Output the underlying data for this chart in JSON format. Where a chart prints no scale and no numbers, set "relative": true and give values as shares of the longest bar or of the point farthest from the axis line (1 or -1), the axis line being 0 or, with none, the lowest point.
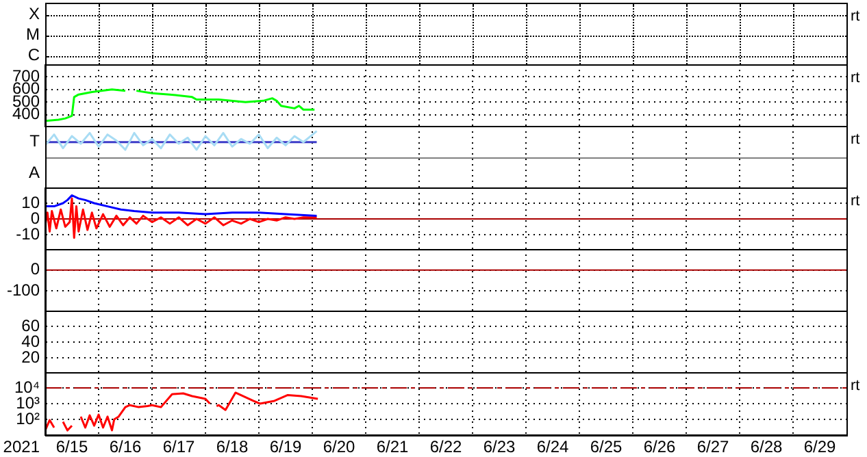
{
  "chart_data": [
    {
      "type": "other",
      "annotations": [
        "X",
        "M",
        "C",
        "rt"
      ]
    },
    {
      "type": "line",
      "xlim": [
        "2021-06-15",
        "2021-06-30"
      ],
      "ylim": [
        300,
        800
      ],
      "yticks": [
        400,
        500,
        600,
        700
      ],
      "xticks": [
        {
          "value": "2021-06-16",
          "label": null
        },
        {
          "value": "2021-06-17",
          "label": null
        },
        {
          "value": "2021-06-18",
          "label": null
        },
        {
          "value": "2021-06-19",
          "label": null
        },
        {
          "value": "2021-06-20",
          "label": null
        },
        {
          "value": "2021-06-21",
          "label": null
        },
        {
          "value": "2021-06-22",
          "label": null
        },
        {
          "value": "2021-06-23",
          "label": null
        },
        {
          "value": "2021-06-24",
          "label": null
        },
        {
          "value": "2021-06-25",
          "label": null
        },
        {
          "value": "2021-06-26",
          "label": null
        },
        {
          "value": "2021-06-27",
          "label": null
        },
        {
          "value": "2021-06-28",
          "label": null
        },
        {
          "value": "2021-06-29",
          "label": null
        }
      ],
      "series": [
        {
          "color": "#00ff00",
          "x": [
            "2021-06-15T00:00",
            "2021-06-15T06:00",
            "2021-06-15T09:00",
            "2021-06-15T12:00",
            "2021-06-15T13:00",
            "2021-06-15T15:00",
            "2021-06-15T21:00",
            "2021-06-16T06:00",
            "2021-06-16T12:00",
            "2021-06-16T14:00",
            "2021-06-16T17:00",
            "2021-06-17T00:00",
            "2021-06-17T08:00",
            "2021-06-17T18:00",
            "2021-06-17T20:00",
            "2021-06-18T06:00",
            "2021-06-18T18:00",
            "2021-06-19T02:00",
            "2021-06-19T06:00",
            "2021-06-19T08:00",
            "2021-06-19T10:00",
            "2021-06-19T16:00",
            "2021-06-19T18:00",
            "2021-06-19T20:00",
            "2021-06-20T01:00"
          ],
          "values": [
            350,
            360,
            370,
            390,
            540,
            560,
            580,
            600,
            590,
            null,
            590,
            570,
            560,
            540,
            520,
            520,
            500,
            510,
            530,
            510,
            470,
            450,
            470,
            440,
            440
          ]
        }
      ],
      "tick_labels": "y",
      "grid": true,
      "annotations": [
        "rt"
      ]
    },
    {
      "type": "line",
      "xlim": [
        "2021-06-15",
        "2021-06-30"
      ],
      "relative": true,
      "xticks": [
        {
          "value": "2021-06-16",
          "label": null
        },
        {
          "value": "2021-06-17",
          "label": null
        },
        {
          "value": "2021-06-18",
          "label": null
        },
        {
          "value": "2021-06-19",
          "label": null
        },
        {
          "value": "2021-06-20",
          "label": null
        },
        {
          "value": "2021-06-21",
          "label": null
        },
        {
          "value": "2021-06-22",
          "label": null
        },
        {
          "value": "2021-06-23",
          "label": null
        },
        {
          "value": "2021-06-24",
          "label": null
        },
        {
          "value": "2021-06-25",
          "label": null
        },
        {
          "value": "2021-06-26",
          "label": null
        },
        {
          "value": "2021-06-27",
          "label": null
        },
        {
          "value": "2021-06-28",
          "label": null
        },
        {
          "value": "2021-06-29",
          "label": null
        }
      ],
      "series": [
        {
          "color": "#a8dcf4",
          "x": [
            "2021-06-15T00:00",
            "2021-06-15T04:00",
            "2021-06-15T08:00",
            "2021-06-15T12:00",
            "2021-06-15T16:00",
            "2021-06-15T20:00",
            "2021-06-16T00:00",
            "2021-06-16T04:00",
            "2021-06-16T08:00",
            "2021-06-16T12:00",
            "2021-06-16T16:00",
            "2021-06-16T20:00",
            "2021-06-17T00:00",
            "2021-06-17T04:00",
            "2021-06-17T08:00",
            "2021-06-17T12:00",
            "2021-06-17T16:00",
            "2021-06-17T20:00",
            "2021-06-18T00:00",
            "2021-06-18T04:00",
            "2021-06-18T08:00",
            "2021-06-18T12:00",
            "2021-06-18T16:00",
            "2021-06-18T20:00",
            "2021-06-19T00:00",
            "2021-06-19T04:00",
            "2021-06-19T08:00",
            "2021-06-19T12:00",
            "2021-06-19T16:00",
            "2021-06-19T20:00",
            "2021-06-20T02:00"
          ],
          "values": [
            0.46,
            0.87,
            0.35,
            0.81,
            0.52,
            0.93,
            0.41,
            0.87,
            0.64,
            0.29,
            0.93,
            0.46,
            0.7,
            0.35,
            0.87,
            0.52,
            0.75,
            0.29,
            0.81,
            0.46,
            0.93,
            0.41,
            0.7,
            0.52,
            0.87,
            0.35,
            0.75,
            0.46,
            0.81,
            0.58,
            1
          ]
        },
        {
          "color": "#3c3cc8",
          "x": [
            "2021-06-15T00:00",
            "2021-06-20T02:00"
          ],
          "values": [
            0.58,
            0.58
          ]
        }
      ],
      "tick_labels": false,
      "grid": "x",
      "annotations": [
        "T",
        "A",
        "rt"
      ]
    },
    {
      "type": "line",
      "xlim": [
        "2021-06-15",
        "2021-06-30"
      ],
      "ylim": [
        -20,
        20
      ],
      "yticks": [
        10,
        0,
        -10
      ],
      "xticks": [
        {
          "value": "2021-06-16",
          "label": null
        },
        {
          "value": "2021-06-17",
          "label": null
        },
        {
          "value": "2021-06-18",
          "label": null
        },
        {
          "value": "2021-06-19",
          "label": null
        },
        {
          "value": "2021-06-20",
          "label": null
        },
        {
          "value": "2021-06-21",
          "label": null
        },
        {
          "value": "2021-06-22",
          "label": null
        },
        {
          "value": "2021-06-23",
          "label": null
        },
        {
          "value": "2021-06-24",
          "label": null
        },
        {
          "value": "2021-06-25",
          "label": null
        },
        {
          "value": "2021-06-26",
          "label": null
        },
        {
          "value": "2021-06-27",
          "label": null
        },
        {
          "value": "2021-06-28",
          "label": null
        },
        {
          "value": "2021-06-29",
          "label": null
        }
      ],
      "series": [
        {
          "color": "#0000ff",
          "x": [
            "2021-06-15T00:00",
            "2021-06-15T04:00",
            "2021-06-15T08:00",
            "2021-06-15T10:00",
            "2021-06-15T12:00",
            "2021-06-15T15:00",
            "2021-06-15T18:00",
            "2021-06-15T22:00",
            "2021-06-16T04:00",
            "2021-06-16T10:00",
            "2021-06-16T16:00",
            "2021-06-17T00:00",
            "2021-06-17T12:00",
            "2021-06-18T00:00",
            "2021-06-18T12:00",
            "2021-06-19T00:00",
            "2021-06-19T12:00",
            "2021-06-20T02:00"
          ],
          "values": [
            8,
            8,
            10,
            12,
            15,
            13,
            12,
            10,
            8,
            6,
            5,
            4,
            4,
            3,
            4,
            4,
            3,
            2
          ]
        },
        {
          "color": "#ff0000",
          "x": [
            "2021-06-15T00:00",
            "2021-06-15T01:00",
            "2021-06-15T02:00",
            "2021-06-15T03:00",
            "2021-06-15T05:00",
            "2021-06-15T07:00",
            "2021-06-15T09:00",
            "2021-06-15T11:00",
            "2021-06-15T12:00",
            "2021-06-15T13:00",
            "2021-06-15T14:00",
            "2021-06-15T15:00",
            "2021-06-15T17:00",
            "2021-06-15T19:00",
            "2021-06-15T21:00",
            "2021-06-15T23:00",
            "2021-06-16T02:00",
            "2021-06-16T05:00",
            "2021-06-16T08:00",
            "2021-06-16T11:00",
            "2021-06-16T14:00",
            "2021-06-16T17:00",
            "2021-06-16T20:00",
            "2021-06-17T00:00",
            "2021-06-17T04:00",
            "2021-06-17T08:00",
            "2021-06-17T12:00",
            "2021-06-17T16:00",
            "2021-06-17T20:00",
            "2021-06-18T00:00",
            "2021-06-18T04:00",
            "2021-06-18T08:00",
            "2021-06-18T12:00",
            "2021-06-18T16:00",
            "2021-06-18T20:00",
            "2021-06-19T00:00",
            "2021-06-19T04:00",
            "2021-06-19T08:00",
            "2021-06-19T12:00",
            "2021-06-19T16:00",
            "2021-06-19T20:00",
            "2021-06-20T02:00"
          ],
          "values": [
            -4,
            4,
            -8,
            5,
            -6,
            6,
            -5,
            -2,
            13,
            -12,
            8,
            -8,
            6,
            -7,
            4,
            -6,
            3,
            -5,
            2,
            -4,
            1,
            -3,
            2,
            -2,
            1,
            -3,
            1,
            -4,
            0,
            -3,
            1,
            -4,
            -1,
            -3,
            0,
            -2,
            0,
            -1,
            1,
            0,
            1,
            1
          ]
        }
      ],
      "ref_lines": [
        {
          "axis": "y",
          "value": 0,
          "color": "#aa0000"
        }
      ],
      "tick_labels": "y",
      "grid": true,
      "annotations": [
        "rt"
      ]
    },
    {
      "type": "line",
      "xlim": [
        "2021-06-15",
        "2021-06-30"
      ],
      "ylim": [
        -200,
        100
      ],
      "yticks": [
        0,
        -100
      ],
      "xticks": [
        {
          "value": "2021-06-16",
          "label": null
        },
        {
          "value": "2021-06-17",
          "label": null
        },
        {
          "value": "2021-06-18",
          "label": null
        },
        {
          "value": "2021-06-19",
          "label": null
        },
        {
          "value": "2021-06-20",
          "label": null
        },
        {
          "value": "2021-06-21",
          "label": null
        },
        {
          "value": "2021-06-22",
          "label": null
        },
        {
          "value": "2021-06-23",
          "label": null
        },
        {
          "value": "2021-06-24",
          "label": null
        },
        {
          "value": "2021-06-25",
          "label": null
        },
        {
          "value": "2021-06-26",
          "label": null
        },
        {
          "value": "2021-06-27",
          "label": null
        },
        {
          "value": "2021-06-28",
          "label": null
        },
        {
          "value": "2021-06-29",
          "label": null
        }
      ],
      "ref_lines": [
        {
          "axis": "y",
          "value": 0,
          "color": "#aa0000"
        }
      ],
      "tick_labels": "y",
      "grid": true
    },
    {
      "type": "line",
      "xlim": [
        "2021-06-15",
        "2021-06-30"
      ],
      "ylim": [
        0,
        80
      ],
      "yticks": [
        60,
        40,
        20
      ],
      "xticks": [
        {
          "value": "2021-06-16",
          "label": null
        },
        {
          "value": "2021-06-17",
          "label": null
        },
        {
          "value": "2021-06-18",
          "label": null
        },
        {
          "value": "2021-06-19",
          "label": null
        },
        {
          "value": "2021-06-20",
          "label": null
        },
        {
          "value": "2021-06-21",
          "label": null
        },
        {
          "value": "2021-06-22",
          "label": null
        },
        {
          "value": "2021-06-23",
          "label": null
        },
        {
          "value": "2021-06-24",
          "label": null
        },
        {
          "value": "2021-06-25",
          "label": null
        },
        {
          "value": "2021-06-26",
          "label": null
        },
        {
          "value": "2021-06-27",
          "label": null
        },
        {
          "value": "2021-06-28",
          "label": null
        },
        {
          "value": "2021-06-29",
          "label": null
        }
      ],
      "tick_labels": "y",
      "grid": true
    },
    {
      "type": "line",
      "xlabel": "2021",
      "xlim": [
        "2021-06-15",
        "2021-06-30"
      ],
      "log": "y",
      "ylim": [
        10,
        100000
      ],
      "yticks": [
        {
          "value": 10000,
          "label": "10⁴"
        },
        {
          "value": 1000,
          "label": "10³"
        },
        {
          "value": 100,
          "label": "10²"
        }
      ],
      "xticks": [
        {
          "value": "2021-06-15T12:00",
          "label": "6/15"
        },
        {
          "value": "2021-06-16",
          "label": null
        },
        {
          "value": "2021-06-16T12:00",
          "label": "6/16"
        },
        {
          "value": "2021-06-17",
          "label": null
        },
        {
          "value": "2021-06-17T12:00",
          "label": "6/17"
        },
        {
          "value": "2021-06-18",
          "label": null
        },
        {
          "value": "2021-06-18T12:00",
          "label": "6/18"
        },
        {
          "value": "2021-06-19",
          "label": null
        },
        {
          "value": "2021-06-19T12:00",
          "label": "6/19"
        },
        {
          "value": "2021-06-20",
          "label": null
        },
        {
          "value": "2021-06-20T12:00",
          "label": "6/20"
        },
        {
          "value": "2021-06-21",
          "label": null
        },
        {
          "value": "2021-06-21T12:00",
          "label": "6/21"
        },
        {
          "value": "2021-06-22",
          "label": null
        },
        {
          "value": "2021-06-22T12:00",
          "label": "6/22"
        },
        {
          "value": "2021-06-23",
          "label": null
        },
        {
          "value": "2021-06-23T12:00",
          "label": "6/23"
        },
        {
          "value": "2021-06-24",
          "label": null
        },
        {
          "value": "2021-06-24T12:00",
          "label": "6/24"
        },
        {
          "value": "2021-06-25",
          "label": null
        },
        {
          "value": "2021-06-25T12:00",
          "label": "6/25"
        },
        {
          "value": "2021-06-26",
          "label": null
        },
        {
          "value": "2021-06-26T12:00",
          "label": "6/26"
        },
        {
          "value": "2021-06-27",
          "label": null
        },
        {
          "value": "2021-06-27T12:00",
          "label": "6/27"
        },
        {
          "value": "2021-06-28",
          "label": null
        },
        {
          "value": "2021-06-28T12:00",
          "label": "6/28"
        },
        {
          "value": "2021-06-29",
          "label": null
        },
        {
          "value": "2021-06-29T12:00",
          "label": "6/29"
        }
      ],
      "series": [
        {
          "color": "#ff0000",
          "x": [
            "2021-06-15T00:00",
            "2021-06-15T02:00",
            "2021-06-15T04:00",
            "2021-06-15T06:00",
            "2021-06-15T08:00",
            "2021-06-15T10:00",
            "2021-06-15T12:00",
            "2021-06-15T14:00",
            "2021-06-15T16:00",
            "2021-06-15T18:00",
            "2021-06-15T20:00",
            "2021-06-15T22:00",
            "2021-06-16T00:00",
            "2021-06-16T02:00",
            "2021-06-16T04:00",
            "2021-06-16T06:00",
            "2021-06-16T07:00",
            "2021-06-16T09:00",
            "2021-06-16T12:00",
            "2021-06-16T14:00",
            "2021-06-16T18:00",
            "2021-06-16T22:00",
            "2021-06-17T00:00",
            "2021-06-17T04:00",
            "2021-06-17T09:00",
            "2021-06-17T14:00",
            "2021-06-17T18:00",
            "2021-06-18T00:00",
            "2021-06-18T02:00",
            "2021-06-18T03:00",
            "2021-06-18T04:00",
            "2021-06-18T05:00",
            "2021-06-18T06:00",
            "2021-06-18T09:00",
            "2021-06-18T13:30",
            "2021-06-18T17:00",
            "2021-06-18T21:30",
            "2021-06-19T00:30",
            "2021-06-19T07:00",
            "2021-06-19T13:00",
            "2021-06-19T19:00",
            "2021-06-20T02:30"
          ],
          "values": [
            20,
            90,
            30,
            null,
            70,
            20,
            40,
            null,
            150,
            30,
            180,
            40,
            200,
            30,
            150,
            20,
            100,
            150,
            600,
            800,
            600,
            700,
            800,
            600,
            4000,
            4500,
            3000,
            2000,
            1000,
            null,
            null,
            700,
            800,
            400,
            5000,
            3000,
            1500,
            1000,
            1500,
            3500,
            3000,
            2000
          ]
        }
      ],
      "ref_lines": [
        {
          "axis": "y",
          "value": 10000,
          "color": "#aa0000",
          "line_style": "dashed"
        }
      ],
      "grid": true,
      "annotations": [
        "rt"
      ]
    }
  ]
}
